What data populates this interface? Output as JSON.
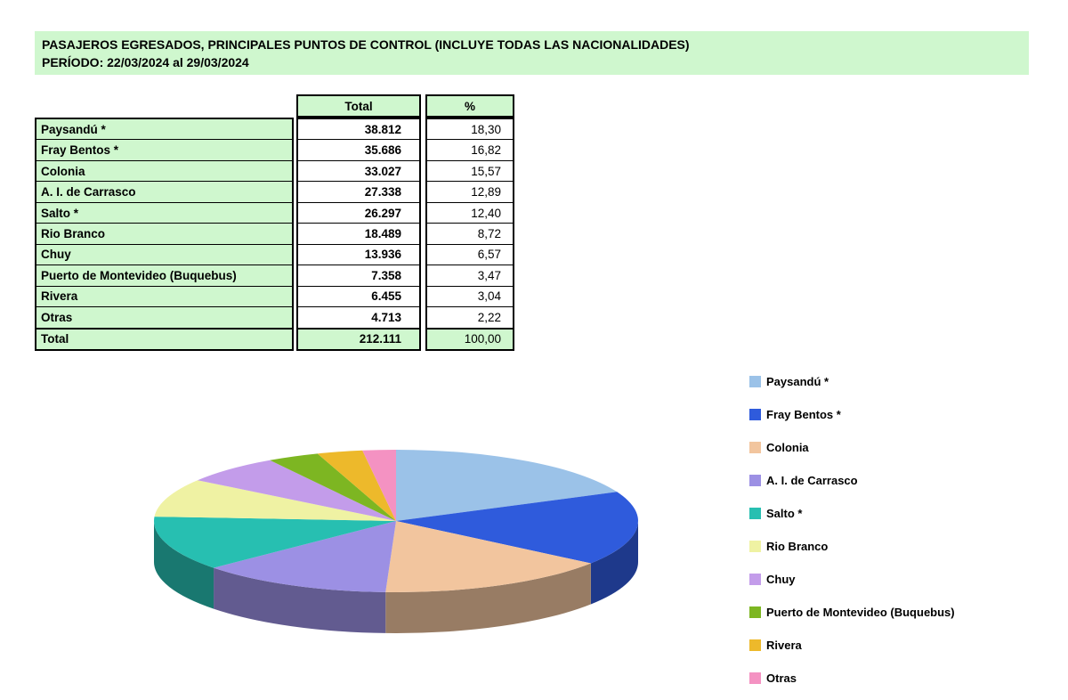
{
  "header": {
    "title": "PASAJEROS EGRESADOS, PRINCIPALES PUNTOS DE CONTROL (INCLUYE TODAS LAS NACIONALIDADES)",
    "period": "PERÍODO: 22/03/2024 al 29/03/2024"
  },
  "table": {
    "columns": {
      "total": "Total",
      "percent": "%"
    },
    "rows": [
      {
        "label": "Paysandú *",
        "total": "38.812",
        "percent": "18,30"
      },
      {
        "label": "Fray Bentos *",
        "total": "35.686",
        "percent": "16,82"
      },
      {
        "label": "Colonia",
        "total": "33.027",
        "percent": "15,57"
      },
      {
        "label": "A. I. de Carrasco",
        "total": "27.338",
        "percent": "12,89"
      },
      {
        "label": "Salto *",
        "total": "26.297",
        "percent": "12,40"
      },
      {
        "label": "Rio Branco",
        "total": "18.489",
        "percent": "8,72"
      },
      {
        "label": "Chuy",
        "total": "13.936",
        "percent": "6,57"
      },
      {
        "label": "Puerto de Montevideo (Buquebus)",
        "total": "7.358",
        "percent": "3,47"
      },
      {
        "label": "Rivera",
        "total": "6.455",
        "percent": "3,04"
      },
      {
        "label": "Otras",
        "total": "4.713",
        "percent": "2,22"
      }
    ],
    "total_row": {
      "label": "Total",
      "total": "212.111",
      "percent": "100,00"
    }
  },
  "chart_data": {
    "type": "pie",
    "style": "3d",
    "title": "",
    "legend_position": "right",
    "categories": [
      "Paysandú *",
      "Fray Bentos *",
      "Colonia",
      "A. I. de Carrasco",
      "Salto *",
      "Rio Branco",
      "Chuy",
      "Puerto de Montevideo (Buquebus)",
      "Rivera",
      "Otras"
    ],
    "values": [
      38812,
      35686,
      33027,
      27338,
      26297,
      18489,
      13936,
      7358,
      6455,
      4713
    ],
    "percentages": [
      18.3,
      16.82,
      15.57,
      12.89,
      12.4,
      8.72,
      6.57,
      3.47,
      3.04,
      2.22
    ],
    "total": 212111,
    "colors": [
      "#9BC2E8",
      "#2F5BDC",
      "#F2C59E",
      "#9C90E4",
      "#27BFB1",
      "#EFF2A3",
      "#C39CEA",
      "#7DB622",
      "#EDB92B",
      "#F492C2"
    ]
  },
  "colors": {
    "band_green": "#CFF7CE",
    "border_black": "#000000",
    "text": "#000000",
    "cell_white": "#FFFFFF"
  }
}
